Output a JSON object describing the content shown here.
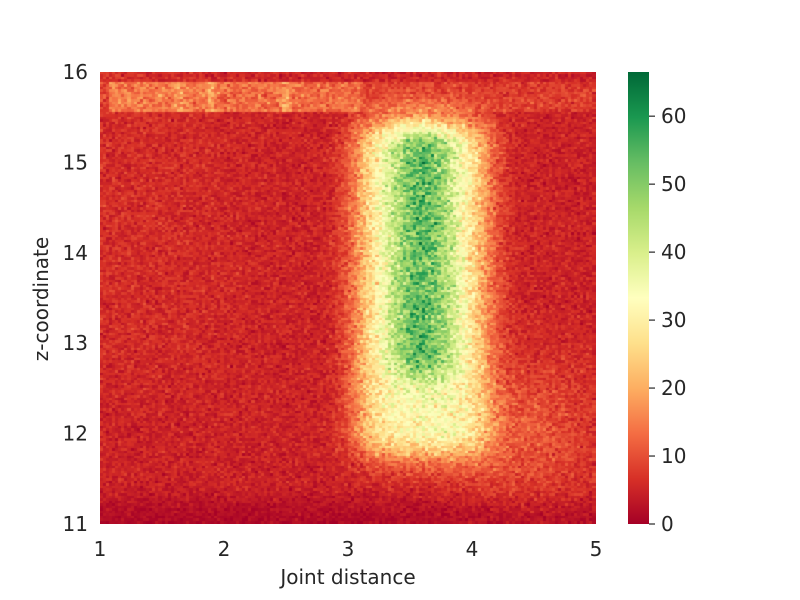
{
  "chart_data": {
    "type": "heatmap",
    "xlabel": "Joint distance",
    "ylabel": "z-coordinate",
    "xlim": [
      1,
      5
    ],
    "ylim": [
      11,
      16
    ],
    "x_ticks": [
      "1",
      "2",
      "3",
      "4",
      "5"
    ],
    "y_ticks": [
      "11",
      "12",
      "13",
      "14",
      "15",
      "16"
    ],
    "colorbar": {
      "colormap": "RdYlGn",
      "range": [
        0,
        66.5
      ],
      "ticks": [
        "0",
        "10",
        "20",
        "30",
        "40",
        "50",
        "60"
      ],
      "colors": [
        "#a50026",
        "#d73027",
        "#f46d43",
        "#fdae61",
        "#fee08b",
        "#ffffbf",
        "#d9ef8b",
        "#a6d96a",
        "#66bd63",
        "#1a9850",
        "#006837"
      ]
    },
    "grid": false,
    "bins": {
      "x": 160,
      "z": 180
    },
    "density_features": {
      "background_count": 5,
      "central_band": {
        "x_range": [
          3.0,
          4.0
        ],
        "z_range": [
          11.5,
          15.8
        ],
        "peak_x": 3.6,
        "peak_count": 55
      },
      "top_strip": {
        "z_range": [
          15.55,
          15.9
        ],
        "count": 14,
        "bright_x": [
          1.65,
          1.9,
          2.5
        ]
      }
    }
  }
}
